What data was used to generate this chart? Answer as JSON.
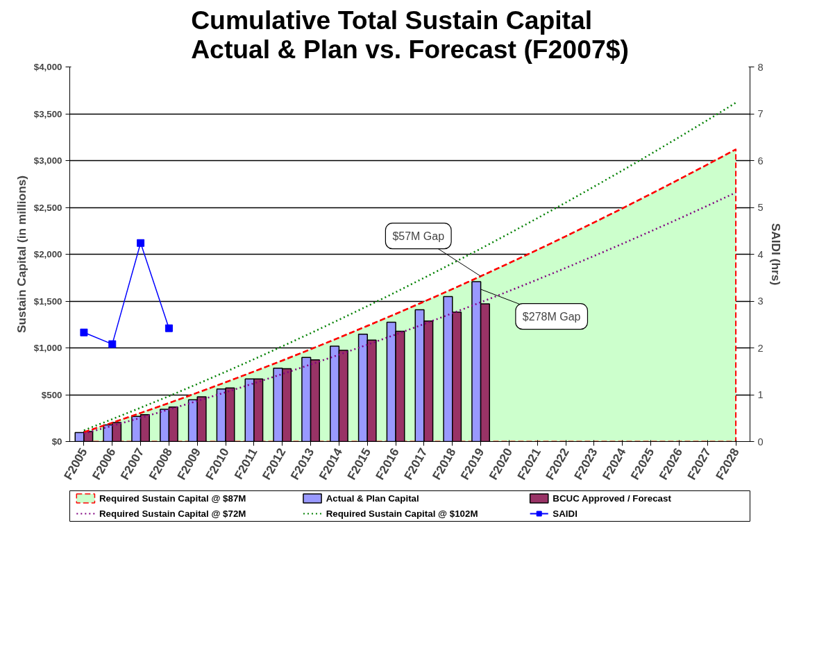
{
  "chart_data": {
    "type": "bar",
    "title": "Cumulative Total Sustain Capital\nActual & Plan vs. Forecast (F2007$)",
    "ylabel": "Sustain Capital (in millions)",
    "y2label": "SAIDI (hrs)",
    "categories": [
      "F2005",
      "F2006",
      "F2007",
      "F2008",
      "F2009",
      "F2010",
      "F2011",
      "F2012",
      "F2013",
      "F2014",
      "F2015",
      "F2016",
      "F2017",
      "F2018",
      "F2019",
      "F2020",
      "F2021",
      "F2022",
      "F2023",
      "F2024",
      "F2025",
      "F2026",
      "F2027",
      "F2028"
    ],
    "series": [
      {
        "type": "area",
        "color": "#ccffcc",
        "values": [
          100,
          201,
          305,
          411,
          521,
          633,
          748,
          865,
          986,
          1109,
          1235,
          1363,
          1494,
          1628,
          1765,
          1905,
          2047,
          2192,
          2340,
          2490,
          2644,
          2800,
          2958,
          3120
        ]
      },
      {
        "name": "Required Sustain Capital @ $87M",
        "type": "line",
        "color": "#ff0000",
        "line_style": "dashed",
        "values": [
          100,
          201,
          305,
          411,
          521,
          633,
          748,
          865,
          986,
          1109,
          1235,
          1363,
          1494,
          1628,
          1765,
          1905,
          2047,
          2192,
          2340,
          2490,
          2644,
          2800,
          2958,
          3120
        ]
      },
      {
        "name": "Required Sustain Capital @ $72M",
        "type": "line",
        "color": "#800080",
        "line_style": "dotted",
        "values": [
          85,
          168,
          253,
          342,
          433,
          526,
          622,
          721,
          823,
          927,
          1034,
          1143,
          1255,
          1370,
          1487,
          1607,
          1729,
          1854,
          1982,
          2112,
          2245,
          2380,
          2518,
          2659
        ]
      },
      {
        "name": "Actual & Plan Capital",
        "color": "#9999ff",
        "values": [
          96,
          178,
          268,
          344,
          446,
          561,
          669,
          783,
          898,
          1019,
          1146,
          1274,
          1408,
          1548,
          1707,
          null,
          null,
          null,
          null,
          null,
          null,
          null,
          null,
          null
        ]
      },
      {
        "name": "Required Sustain Capital @ $102M",
        "type": "line",
        "color": "#008000",
        "line_style": "dotted",
        "values": [
          120,
          239,
          361,
          485,
          614,
          745,
          879,
          1017,
          1157,
          1301,
          1446,
          1595,
          1748,
          1903,
          2060,
          2221,
          2385,
          2552,
          2722,
          2895,
          3071,
          3250,
          3432,
          3618
        ]
      },
      {
        "name": "BCUC Approved / Forecast",
        "color": "#993366",
        "values": [
          108,
          204,
          287,
          369,
          478,
          573,
          669,
          777,
          873,
          975,
          1083,
          1178,
          1287,
          1382,
          1471,
          null,
          null,
          null,
          null,
          null,
          null,
          null,
          null,
          null
        ]
      },
      {
        "name": "SAIDI",
        "type": "line",
        "color": "#0000ff",
        "axis": "y2",
        "marker": "square",
        "line_style": "solid",
        "values": [
          2.33,
          2.08,
          4.24,
          2.42,
          null,
          null,
          null,
          null,
          null,
          null,
          null,
          null,
          null,
          null,
          null,
          null,
          null,
          null,
          null,
          null,
          null,
          null,
          null,
          null
        ]
      }
    ],
    "ylim": [
      0,
      4000
    ],
    "yticks": [
      {
        "value": 0,
        "label": "$0"
      },
      {
        "value": 500,
        "label": "$500"
      },
      {
        "value": 1000,
        "label": "$1,000"
      },
      {
        "value": 1500,
        "label": "$1,500"
      },
      {
        "value": 2000,
        "label": "$2,000"
      },
      {
        "value": 2500,
        "label": "$2,500"
      },
      {
        "value": 3000,
        "label": "$3,000"
      },
      {
        "value": 3500,
        "label": "$3,500"
      },
      {
        "value": 4000,
        "label": "$4,000"
      }
    ],
    "y2lim": [
      0,
      8
    ],
    "y2ticks": [
      0,
      1,
      2,
      3,
      4,
      5,
      6,
      7,
      8
    ],
    "grid": "y",
    "legend": "bottom",
    "annotations": [
      {
        "text": "$57M Gap",
        "x": "F2019",
        "y": 1765
      },
      {
        "text": "$278M Gap",
        "x": "F2019",
        "y": 1626
      }
    ]
  }
}
